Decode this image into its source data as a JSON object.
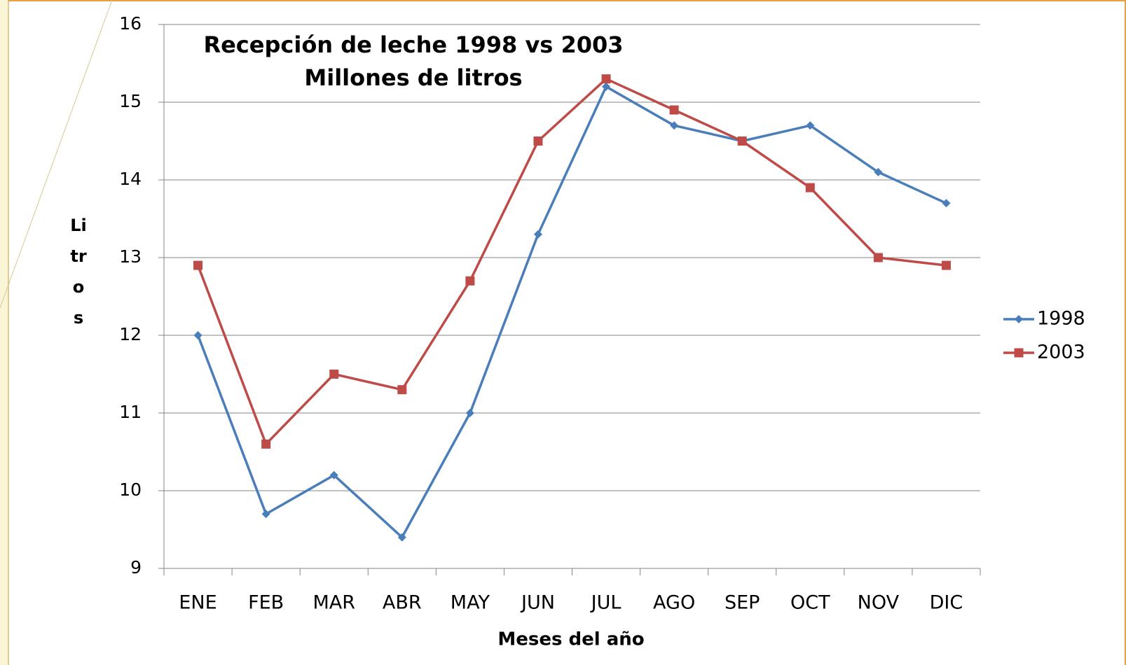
{
  "chart_data": {
    "type": "line",
    "title": "Recepción de leche 1998 vs 2003",
    "subtitle": "Millones de litros",
    "x_label": "Meses del año",
    "y_label": "Litros",
    "categories": [
      "ENE",
      "FEB",
      "MAR",
      "ABR",
      "MAY",
      "JUN",
      "JUL",
      "AGO",
      "SEP",
      "OCT",
      "NOV",
      "DIC"
    ],
    "series": [
      {
        "name": "1998",
        "color": "#4a7ebb",
        "marker": "diamond",
        "values": [
          12,
          9.7,
          10.2,
          9.4,
          11,
          13.3,
          15.2,
          14.7,
          14.5,
          14.7,
          14.1,
          13.7
        ]
      },
      {
        "name": "2003",
        "color": "#be4b48",
        "marker": "square",
        "values": [
          12.9,
          10.6,
          11.5,
          11.3,
          12.7,
          14.5,
          15.3,
          14.9,
          14.5,
          13.9,
          13.0,
          12.9
        ]
      }
    ],
    "ylim": [
      9,
      16
    ],
    "yticks": [
      9,
      10,
      11,
      12,
      13,
      14,
      15,
      16
    ],
    "grid": true,
    "legend": "right"
  }
}
